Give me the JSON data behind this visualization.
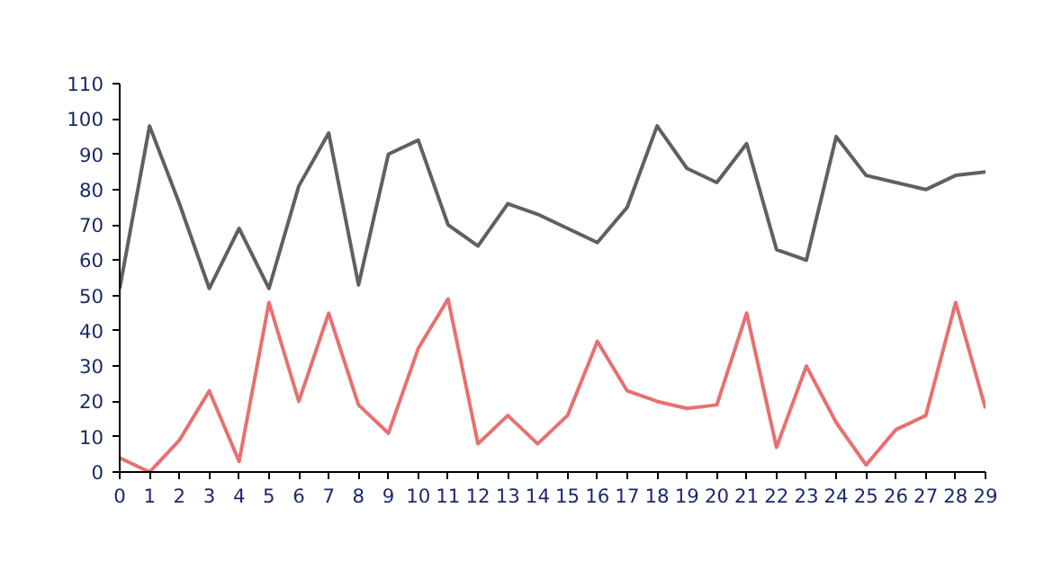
{
  "chart_data": {
    "type": "line",
    "x": [
      0,
      1,
      2,
      3,
      4,
      5,
      6,
      7,
      8,
      9,
      10,
      11,
      12,
      13,
      14,
      15,
      16,
      17,
      18,
      19,
      20,
      21,
      22,
      23,
      24,
      25,
      26,
      27,
      28,
      29
    ],
    "series": [
      {
        "color": "#606060",
        "values": [
          52,
          98,
          76,
          52,
          69,
          52,
          81,
          96,
          53,
          90,
          94,
          70,
          64,
          76,
          73,
          69,
          65,
          75,
          98,
          86,
          82,
          93,
          63,
          60,
          95,
          84,
          82,
          80,
          84,
          85
        ]
      },
      {
        "color": "#e87070",
        "values": [
          4,
          0,
          9,
          23,
          3,
          48,
          20,
          45,
          19,
          11,
          35,
          49,
          8,
          16,
          8,
          16,
          37,
          23,
          20,
          18,
          19,
          45,
          7,
          30,
          14,
          2,
          12,
          16,
          48,
          18
        ]
      }
    ],
    "xlim": [
      0,
      29
    ],
    "ylim": [
      0,
      110
    ],
    "xticks": [
      0,
      1,
      2,
      3,
      4,
      5,
      6,
      7,
      8,
      9,
      10,
      11,
      12,
      13,
      14,
      15,
      16,
      17,
      18,
      19,
      20,
      21,
      22,
      23,
      24,
      25,
      26,
      27,
      28,
      29
    ],
    "yticks": [
      0,
      10,
      20,
      30,
      40,
      50,
      60,
      70,
      80,
      90,
      100,
      110
    ],
    "grid": false,
    "marker": "none",
    "line_style": "solid"
  }
}
